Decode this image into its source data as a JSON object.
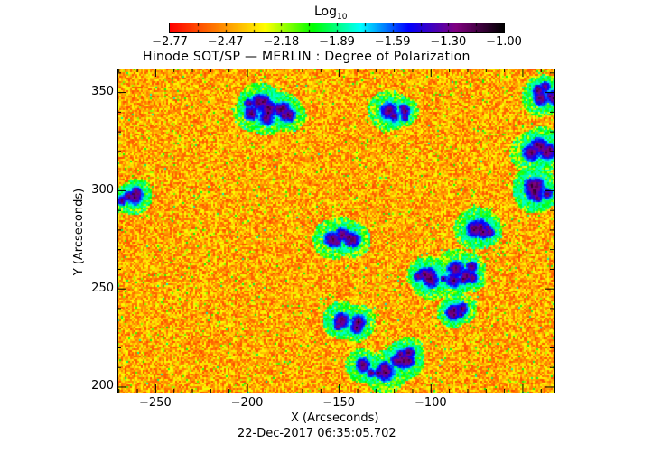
{
  "chart_data": {
    "type": "heatmap",
    "title": "Hinode SOT/SP — MERLIN : Degree of Polarization",
    "xlabel": "X (Arcseconds)",
    "ylabel": "Y (Arcseconds)",
    "xlim": [
      -270.6,
      -33
    ],
    "ylim": [
      197,
      362
    ],
    "xticks": [
      -250,
      -200,
      -150,
      -100
    ],
    "xtick_labels": [
      "−250",
      "−200",
      "−150",
      "−100"
    ],
    "yticks": [
      200,
      250,
      300,
      350
    ],
    "ytick_labels": [
      "200",
      "250",
      "300",
      "350"
    ],
    "colorbar": {
      "label": "Log",
      "label_sub": "10",
      "range": [
        -2.77,
        -1.0
      ],
      "tick_labels": [
        "−2.77",
        "−2.47",
        "−2.18",
        "−1.89",
        "−1.59",
        "−1.30",
        "−1.00"
      ],
      "colormap": [
        "#ff0000",
        "#ff8000",
        "#ffff00",
        "#00ff00",
        "#00ffff",
        "#0000ff",
        "#800080",
        "#000000"
      ]
    },
    "strong_polarization_regions": [
      {
        "x": -185,
        "y": 340
      },
      {
        "x": -120,
        "y": 340
      },
      {
        "x": -150,
        "y": 275
      },
      {
        "x": -100,
        "y": 255
      },
      {
        "x": -90,
        "y": 238
      },
      {
        "x": -145,
        "y": 234
      },
      {
        "x": -130,
        "y": 210
      },
      {
        "x": -115,
        "y": 215
      },
      {
        "x": -40,
        "y": 320
      },
      {
        "x": -40,
        "y": 300
      },
      {
        "x": -265,
        "y": 297
      },
      {
        "x": -75,
        "y": 280
      },
      {
        "x": -85,
        "y": 258
      },
      {
        "x": -195,
        "y": 342
      },
      {
        "x": -38,
        "y": 350
      }
    ]
  },
  "timestamp": "22-Dec-2017 06:35:05.702"
}
